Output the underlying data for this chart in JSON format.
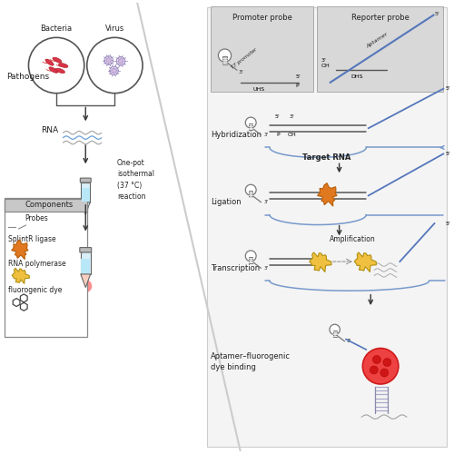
{
  "bg_color": "#ffffff",
  "bacteria_color": "#d9334a",
  "virus_color": "#c8aed4",
  "rna_color": "#6a9fd8",
  "ligase_color": "#e07820",
  "polymerase_color": "#f0c040",
  "red_glow": "#e03030",
  "text_color": "#222222",
  "aptamer_color": "#5577bb",
  "gray_box": "#d0d0d0",
  "labels": {
    "bacteria": "Bacteria",
    "virus": "Virus",
    "pathogens": "Pathogens",
    "rna": "RNA",
    "components": "Components",
    "probes": "Probes",
    "splintR": "SplintR ligase",
    "polymerase": "RNA polymerase",
    "fluorogenic": "fluorogenic dye",
    "onepot": "One-pot\nisothermal\n(37 °C)\nreaction",
    "promoter_probe": "Promoter probe",
    "reporter_probe": "Reporter probe",
    "t7_promoter": "T7 promoter",
    "aptamer": "Aptamer",
    "uhs": "UHS",
    "dhs": "DHS",
    "hybridization": "Hybridization",
    "target_rna": "Target RNA",
    "ligation": "Ligation",
    "transcription": "Transcription",
    "amplification": "Amplification",
    "aptamer_binding": "Aptamer–fluorogenic\ndye binding"
  }
}
